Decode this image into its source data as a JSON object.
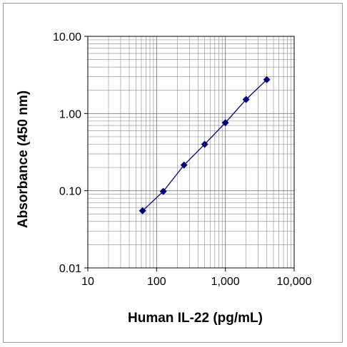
{
  "chart_data": {
    "type": "line",
    "xlabel": "Human IL-22 (pg/mL)",
    "ylabel": "Absorbance (450 nm)",
    "xscale": "log",
    "yscale": "log",
    "xlim": [
      10,
      10000
    ],
    "ylim": [
      0.01,
      10
    ],
    "grid": true,
    "marker": "diamond",
    "line_color": "#000080",
    "x_tick_labels": [
      "10",
      "100",
      "1,000",
      "10,000"
    ],
    "y_tick_labels": [
      "10.00",
      "1.00",
      "0.10",
      "0.01"
    ],
    "series": [
      {
        "x": [
          62.5,
          125,
          250,
          500,
          1000,
          2000,
          4000
        ],
        "y": [
          0.055,
          0.098,
          0.215,
          0.4,
          0.76,
          1.52,
          2.75
        ]
      }
    ]
  }
}
